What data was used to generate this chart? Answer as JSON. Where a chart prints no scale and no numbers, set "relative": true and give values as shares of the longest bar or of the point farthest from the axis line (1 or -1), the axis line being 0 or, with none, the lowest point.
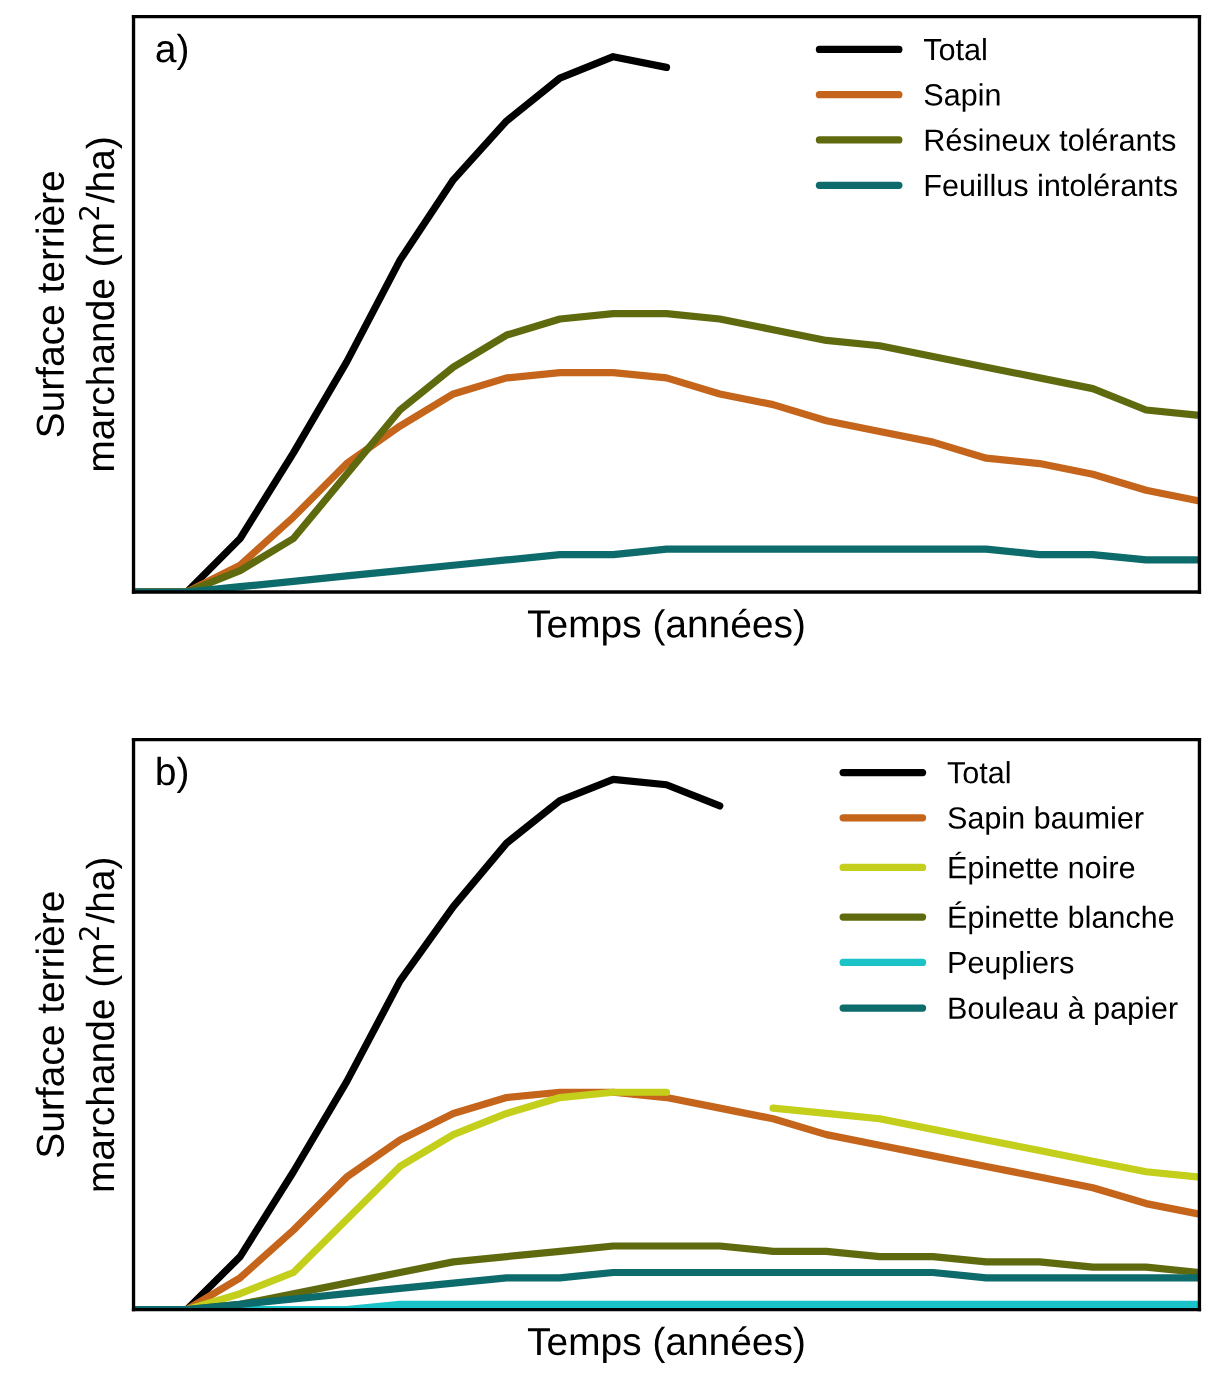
{
  "chart_data": [
    {
      "type": "line",
      "title": "a)",
      "xlabel": "Temps (années)",
      "ylabel": "Surface terrière\nmarchande (m$^{2}$/ha)",
      "relative": true,
      "legend": "top right",
      "grid": false,
      "tick_labels": false,
      "categories": [
        null,
        null,
        null,
        null,
        null,
        null,
        null,
        null,
        null,
        null,
        null,
        null,
        null,
        null,
        null,
        null,
        null,
        null,
        null,
        null,
        null
      ],
      "series": [
        {
          "name": "Total",
          "color": "#000000",
          "values": [
            0,
            0,
            0.1,
            0.26,
            0.43,
            0.62,
            0.77,
            0.88,
            0.96,
            1.0,
            0.98,
            null,
            null,
            null,
            null,
            null,
            null,
            null,
            null,
            null,
            null
          ]
        },
        {
          "name": "Sapin",
          "color": "#c5651b",
          "values": [
            0,
            0,
            0.05,
            0.14,
            0.24,
            0.31,
            0.37,
            0.4,
            0.41,
            0.41,
            0.4,
            0.37,
            0.35,
            0.32,
            0.3,
            0.28,
            0.25,
            0.24,
            0.22,
            0.19,
            0.17
          ]
        },
        {
          "name": "Résineux tolérants",
          "color": "#5f6a0f",
          "values": [
            0,
            0,
            0.04,
            0.1,
            0.22,
            0.34,
            0.42,
            0.48,
            0.51,
            0.52,
            0.52,
            0.51,
            0.49,
            0.47,
            0.46,
            0.44,
            0.42,
            0.4,
            0.38,
            0.34,
            0.33
          ]
        },
        {
          "name": "Feuillus intolérants",
          "color": "#0d6b6b",
          "values": [
            0,
            0,
            0.01,
            0.02,
            0.03,
            0.04,
            0.05,
            0.06,
            0.07,
            0.07,
            0.08,
            0.08,
            0.08,
            0.08,
            0.08,
            0.08,
            0.08,
            0.07,
            0.07,
            0.06,
            0.06
          ]
        }
      ]
    },
    {
      "type": "line",
      "title": "b)",
      "xlabel": "Temps (années)",
      "ylabel": "Surface terrière\nmarchande (m$^{2}$/ha)",
      "relative": true,
      "legend": "top right",
      "grid": false,
      "tick_labels": false,
      "categories": [
        null,
        null,
        null,
        null,
        null,
        null,
        null,
        null,
        null,
        null,
        null,
        null,
        null,
        null,
        null,
        null,
        null,
        null,
        null,
        null,
        null
      ],
      "series": [
        {
          "name": "Total",
          "color": "#000000",
          "values": [
            0,
            0,
            0.1,
            0.26,
            0.43,
            0.62,
            0.76,
            0.88,
            0.96,
            1.0,
            0.99,
            0.95,
            null,
            null,
            null,
            null,
            null,
            null,
            null,
            null,
            null
          ]
        },
        {
          "name": "Sapin baumier",
          "color": "#c5651b",
          "values": [
            0,
            0,
            0.06,
            0.15,
            0.25,
            0.32,
            0.37,
            0.4,
            0.41,
            0.41,
            0.4,
            0.38,
            0.36,
            0.33,
            0.31,
            0.29,
            0.27,
            0.25,
            0.23,
            0.2,
            0.18
          ]
        },
        {
          "name": "Épinette noire",
          "color": "#c3cf1a",
          "values": [
            0,
            0,
            0.03,
            0.07,
            0.17,
            0.27,
            0.33,
            0.37,
            0.4,
            0.41,
            0.41,
            null,
            0.38,
            0.37,
            0.36,
            0.34,
            0.32,
            0.3,
            0.28,
            0.26,
            0.25
          ]
        },
        {
          "name": "Épinette blanche",
          "color": "#5f6a0f",
          "values": [
            0,
            0,
            0.01,
            0.03,
            0.05,
            0.07,
            0.09,
            0.1,
            0.11,
            0.12,
            0.12,
            0.12,
            0.11,
            0.11,
            0.1,
            0.1,
            0.09,
            0.09,
            0.08,
            0.08,
            0.07
          ]
        },
        {
          "name": "Peupliers",
          "color": "#19c3c8",
          "values": [
            0,
            0,
            0,
            0,
            0,
            0.01,
            0.01,
            0.01,
            0.01,
            0.01,
            0.01,
            0.01,
            0.01,
            0.01,
            0.01,
            0.01,
            0.01,
            0.01,
            0.01,
            0.01,
            0.01
          ]
        },
        {
          "name": "Bouleau à papier",
          "color": "#0d6b6b",
          "values": [
            0,
            0,
            0.01,
            0.02,
            0.03,
            0.04,
            0.05,
            0.06,
            0.06,
            0.07,
            0.07,
            0.07,
            0.07,
            0.07,
            0.07,
            0.07,
            0.06,
            0.06,
            0.06,
            0.06,
            0.06
          ]
        }
      ]
    }
  ]
}
